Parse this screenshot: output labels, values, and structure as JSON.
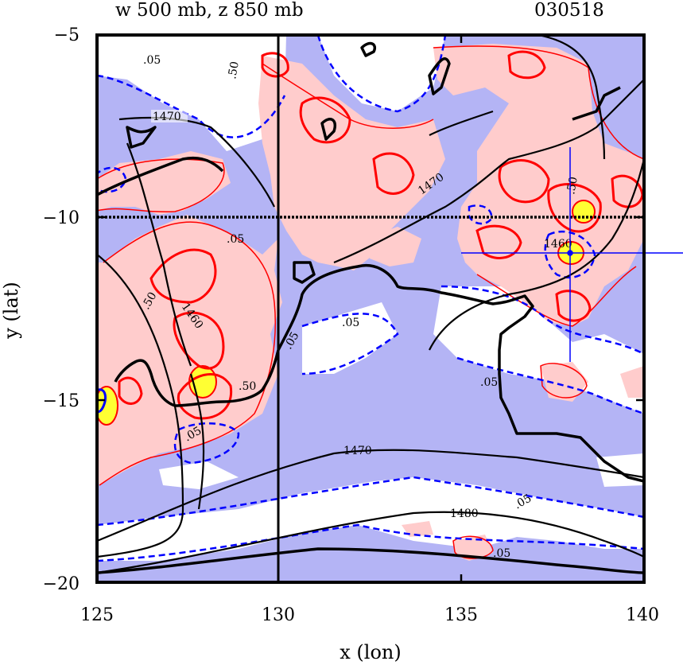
{
  "title": {
    "left": "w 500 mb, z 850 mb",
    "right": "030518"
  },
  "axes": {
    "xlabel": "x (lon)",
    "ylabel": "y (lat)",
    "x_ticks": [
      "125",
      "130",
      "135",
      "140"
    ],
    "y_ticks": [
      "−5",
      "−10",
      "−15",
      "−20"
    ],
    "xlim": [
      125,
      140
    ],
    "ylim": [
      -20,
      -5
    ]
  },
  "contour_labels": {
    "z_1470_a": "1470",
    "z_1470_b": "1470",
    "z_1470_c": "1470",
    "z_1480": "1480",
    "z_1460_a": "1460",
    "z_1460_b": "1460",
    "w_05": [
      ".05",
      ".05",
      ".05",
      ".05",
      ".05",
      ".05",
      ".05",
      ".05"
    ],
    "w_50": [
      ".50",
      ".50",
      ".50",
      ".50"
    ]
  },
  "colors": {
    "ascent_fill": "#ffcccc",
    "descent_fill": "#b4b4f5",
    "strong_ascent": "#ffff33",
    "red_contour": "#ff0000",
    "blue_contour": "#0000ff",
    "height_contour": "#000000"
  },
  "marker": {
    "lon": 138,
    "lat": -11
  }
}
